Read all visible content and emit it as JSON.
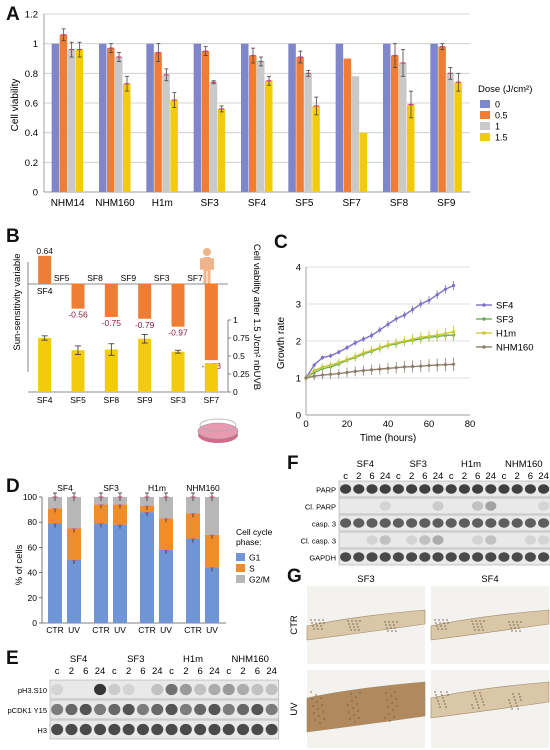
{
  "panels": {
    "A": "A",
    "B": "B",
    "C": "C",
    "D": "D",
    "E": "E",
    "F": "F",
    "G": "G"
  },
  "colors": {
    "dose0": "#7f86c9",
    "dose05": "#ef7d33",
    "dose1": "#c9c9c9",
    "dose15": "#f2cc0c",
    "sf4": "#7f6fc8",
    "sf3": "#6cae5b",
    "h1m": "#c9c93a",
    "nhm160": "#8e7f6b",
    "g1": "#6f95d6",
    "s": "#ef8d2b",
    "g2m": "#b7b7b7",
    "error": "#cc3d78"
  },
  "chart_data": [
    {
      "id": "A",
      "type": "bar",
      "ylabel": "Cell viability",
      "ylim": [
        0,
        1.2
      ],
      "yticks": [
        "0",
        "0.2",
        "0.4",
        "0.6",
        "0.8",
        "1",
        "1.2"
      ],
      "categories": [
        "NHM14",
        "NHM160",
        "H1m",
        "SF3",
        "SF4",
        "SF5",
        "SF7",
        "SF8",
        "SF9"
      ],
      "legend_title": "Dose (J/cm²)",
      "legend_position": "right",
      "series": [
        {
          "name": "0",
          "values": [
            1,
            1,
            1,
            1,
            1,
            1,
            1,
            1,
            1
          ]
        },
        {
          "name": "0.5",
          "values": [
            1.06,
            0.97,
            0.94,
            0.95,
            0.92,
            0.91,
            0.9,
            0.92,
            0.98
          ]
        },
        {
          "name": "1",
          "values": [
            0.96,
            0.91,
            0.79,
            0.74,
            0.88,
            0.8,
            0.78,
            0.87,
            0.8
          ]
        },
        {
          "name": "1.5",
          "values": [
            0.96,
            0.73,
            0.62,
            0.56,
            0.75,
            0.58,
            0.4,
            0.59,
            0.74
          ]
        }
      ],
      "errors": [
        [
          0,
          0,
          0,
          0,
          0,
          0,
          0,
          0,
          0
        ],
        [
          0.04,
          0.03,
          0.06,
          0.03,
          0.05,
          0.04,
          0,
          0.08,
          0.02
        ],
        [
          0.05,
          0.03,
          0.04,
          0.01,
          0.03,
          0.02,
          0,
          0.09,
          0.04
        ],
        [
          0.05,
          0.05,
          0.05,
          0.02,
          0.03,
          0.06,
          0,
          0.09,
          0.06
        ]
      ]
    },
    {
      "id": "B-top",
      "type": "bar",
      "ylabel": "Sun-sensitivity variable",
      "categories": [
        "SF4",
        "SF5",
        "SF8",
        "SF9",
        "SF3",
        "SF7"
      ],
      "values": [
        0.64,
        -0.56,
        -0.75,
        -0.79,
        -0.97,
        -1.73
      ],
      "value_labels": [
        "0.64",
        "-0.56",
        "-0.75",
        "-0.79",
        "-0.97",
        "-1.73"
      ]
    },
    {
      "id": "B-bottom",
      "type": "bar",
      "ylabel": "Cell viability after 1.5 J/cm² nbUVB",
      "ylim": [
        0,
        1
      ],
      "yticks": [
        "0",
        "0.25",
        "0.5",
        "0.75",
        "1"
      ],
      "categories": [
        "SF4",
        "SF5",
        "SF8",
        "SF9",
        "SF3",
        "SF7"
      ],
      "values": [
        0.75,
        0.58,
        0.59,
        0.74,
        0.56,
        0.4
      ],
      "errors": [
        0.03,
        0.06,
        0.08,
        0.06,
        0.02,
        0
      ]
    },
    {
      "id": "C",
      "type": "line",
      "xlabel": "Time (hours)",
      "ylabel": "Growth rate",
      "xlim": [
        0,
        80
      ],
      "ylim": [
        0,
        4
      ],
      "xticks": [
        "0",
        "20",
        "40",
        "60",
        "80"
      ],
      "yticks": [
        "0",
        "1",
        "2",
        "3",
        "4"
      ],
      "legend_position": "right",
      "x": [
        0,
        4,
        8,
        12,
        16,
        20,
        24,
        28,
        32,
        36,
        40,
        44,
        48,
        52,
        56,
        60,
        64,
        68,
        72
      ],
      "series": [
        {
          "name": "SF4",
          "values": [
            1.0,
            1.35,
            1.55,
            1.6,
            1.7,
            1.82,
            1.95,
            2.05,
            2.15,
            2.3,
            2.45,
            2.6,
            2.7,
            2.85,
            3.0,
            3.1,
            3.25,
            3.4,
            3.5
          ]
        },
        {
          "name": "SF3",
          "values": [
            1.0,
            1.15,
            1.25,
            1.3,
            1.38,
            1.48,
            1.55,
            1.65,
            1.72,
            1.8,
            1.88,
            1.92,
            1.98,
            2.02,
            2.06,
            2.1,
            2.12,
            2.15,
            2.16
          ]
        },
        {
          "name": "H1m",
          "values": [
            1.0,
            1.2,
            1.3,
            1.35,
            1.42,
            1.5,
            1.58,
            1.68,
            1.75,
            1.82,
            1.9,
            1.95,
            2.0,
            2.05,
            2.1,
            2.13,
            2.16,
            2.2,
            2.25
          ]
        },
        {
          "name": "NHM160",
          "values": [
            1.0,
            1.05,
            1.08,
            1.1,
            1.12,
            1.15,
            1.18,
            1.2,
            1.22,
            1.24,
            1.26,
            1.28,
            1.3,
            1.31,
            1.32,
            1.34,
            1.35,
            1.36,
            1.37
          ]
        }
      ]
    },
    {
      "id": "D",
      "type": "bar",
      "ylabel": "% of cells",
      "ylim": [
        0,
        100
      ],
      "yticks": [
        "0",
        "20",
        "40",
        "60",
        "80",
        "100"
      ],
      "groups": [
        "SF4",
        "SF3",
        "H1m",
        "NHM160"
      ],
      "categories": [
        "CTR",
        "UV"
      ],
      "legend_title": "Cell cycle phase:",
      "series": [
        {
          "name": "G1",
          "values": [
            [
              79,
              50
            ],
            [
              79,
              78
            ],
            [
              88,
              58
            ],
            [
              67,
              44
            ]
          ]
        },
        {
          "name": "S",
          "values": [
            [
              12,
              25
            ],
            [
              15,
              16
            ],
            [
              5,
              25
            ],
            [
              20,
              26
            ]
          ]
        },
        {
          "name": "G2/M",
          "values": [
            [
              9,
              25
            ],
            [
              6,
              6
            ],
            [
              7,
              17
            ],
            [
              13,
              30
            ]
          ]
        }
      ]
    }
  ],
  "panel_b_icon": "human-figure-icon",
  "panel_b_dish": "culture-dish-icon",
  "panel_e": {
    "lines": [
      "SF4",
      "SF3",
      "H1m",
      "NHM160"
    ],
    "timepoints": [
      "c",
      "2",
      "6",
      "24"
    ],
    "rows": [
      "pH3.S10",
      "pCDK1 Y15",
      "H3"
    ]
  },
  "panel_f": {
    "lines": [
      "SF4",
      "SF3",
      "H1m",
      "NHM160"
    ],
    "timepoints": [
      "c",
      "2",
      "6",
      "24"
    ],
    "rows": [
      "PARP",
      "Cl. PARP",
      "casp. 3",
      "Cl. casp. 3",
      "GAPDH"
    ]
  },
  "panel_g": {
    "columns": [
      "SF3",
      "SF4"
    ],
    "rows": [
      "CTR",
      "UV"
    ]
  }
}
